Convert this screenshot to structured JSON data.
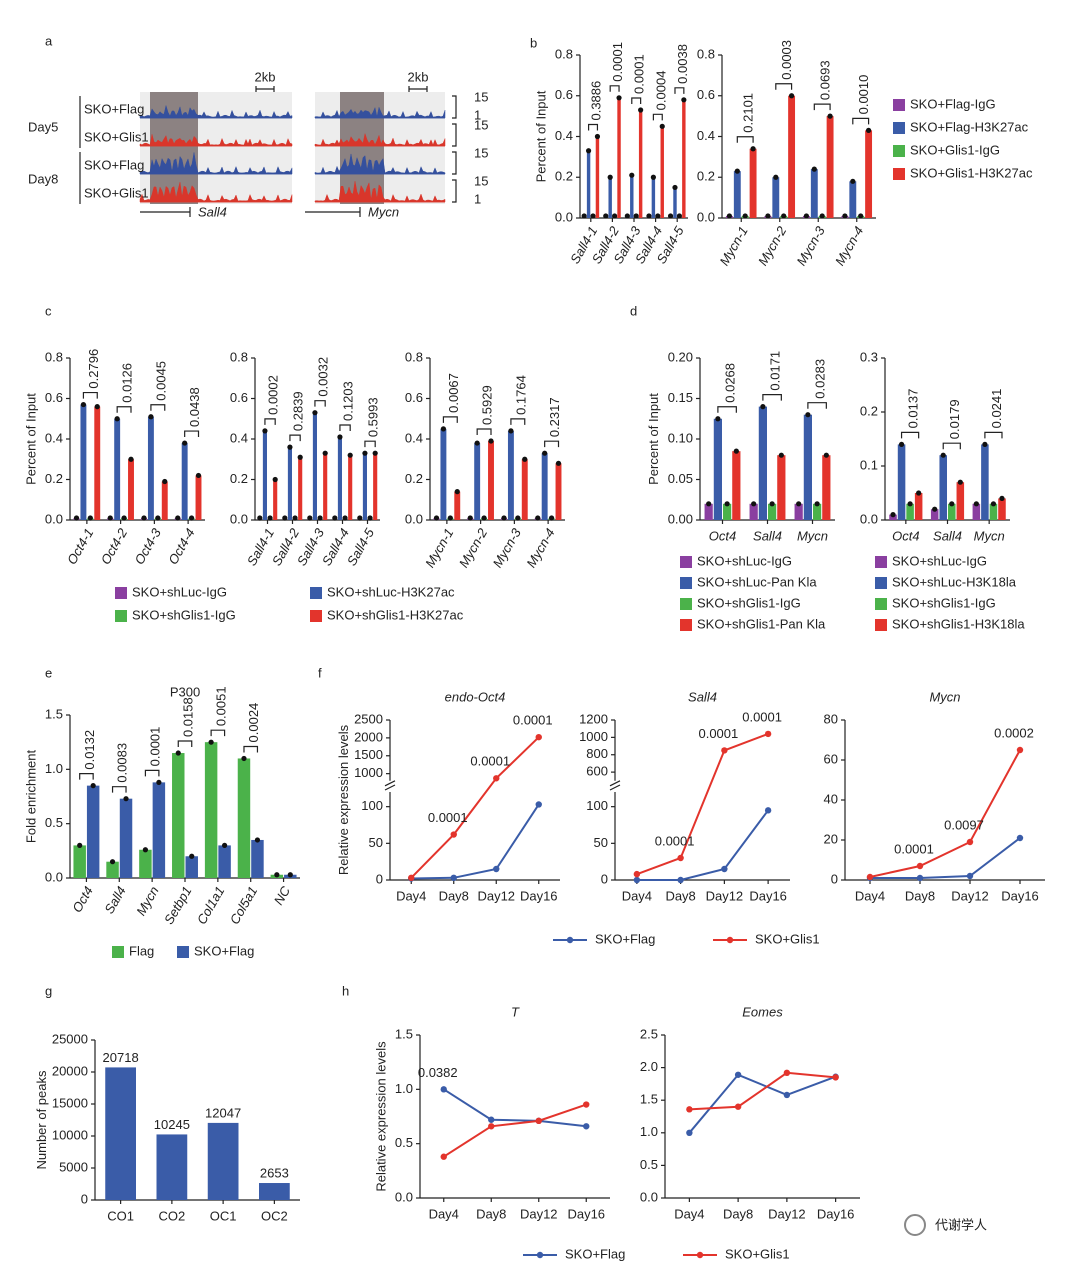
{
  "panel_a": {
    "label": "a",
    "days": [
      "Day5",
      "Day8"
    ],
    "tracks": [
      "SKO+Flag",
      "SKO+Glis1"
    ],
    "genes": [
      "Sall4",
      "Mycn"
    ],
    "scale_bar": "2kb",
    "scale": [
      "15",
      "1"
    ]
  },
  "chart_data": [
    {
      "label": "b",
      "legends": [
        [
          {
            "name": "SKO+Flag-IgG",
            "color": "#8a3fa0"
          },
          {
            "name": "SKO+Flag-H3K27ac",
            "color": "#3a5ca8"
          },
          {
            "name": "SKO+Glis1-IgG",
            "color": "#4bb24a"
          },
          {
            "name": "SKO+Glis1-H3K27ac",
            "color": "#e3342c"
          }
        ]
      ],
      "charts": [
        {
          "type": "bar",
          "ylabel": "Percent of Input",
          "categories": [
            "Sall4-1",
            "Sall4-2",
            "Sall4-3",
            "Sall4-4",
            "Sall4-5"
          ],
          "series": [
            {
              "values": [
                0.01,
                0.01,
                0.01,
                0.01,
                0.01
              ]
            },
            {
              "values": [
                0.33,
                0.2,
                0.21,
                0.2,
                0.15
              ]
            },
            {
              "values": [
                0.01,
                0.01,
                0.01,
                0.01,
                0.01
              ]
            },
            {
              "values": [
                0.4,
                0.59,
                0.53,
                0.45,
                0.58
              ]
            }
          ],
          "pvalues": [
            "0.3886",
            "0.0001",
            "0.0001",
            "0.0004",
            "0.0038"
          ],
          "ylim": [
            0,
            0.8
          ],
          "yticks": [
            {
              "value": 0,
              "label": "0.0"
            },
            0.2,
            0.4,
            0.6,
            0.8
          ]
        },
        {
          "type": "bar",
          "categories": [
            "Mycn-1",
            "Mycn-2",
            "Mycn-3",
            "Mycn-4"
          ],
          "series": [
            {
              "values": [
                0.01,
                0.01,
                0.01,
                0.01
              ]
            },
            {
              "values": [
                0.23,
                0.2,
                0.24,
                0.18
              ]
            },
            {
              "values": [
                0.01,
                0.01,
                0.01,
                0.01
              ]
            },
            {
              "values": [
                0.34,
                0.6,
                0.5,
                0.43
              ]
            }
          ],
          "pvalues": [
            "0.2101",
            "0.0003",
            "0.0693",
            "0.0010"
          ],
          "ylim": [
            0,
            0.8
          ],
          "yticks": [
            {
              "value": 0,
              "label": "0.0"
            },
            0.2,
            0.4,
            0.6,
            0.8
          ]
        }
      ]
    },
    {
      "label": "c",
      "legends": [
        [
          {
            "name": "SKO+shLuc-IgG",
            "color": "#8a3fa0"
          },
          {
            "name": "SKO+shLuc-H3K27ac",
            "color": "#3a5ca8"
          },
          {
            "name": "SKO+shGlis1-IgG",
            "color": "#4bb24a"
          },
          {
            "name": "SKO+shGlis1-H3K27ac",
            "color": "#e3342c"
          }
        ]
      ],
      "charts": [
        {
          "type": "bar",
          "ylabel": "Percent of Input",
          "categories": [
            "Oct4-1",
            "Oct4-2",
            "Oct4-3",
            "Oct4-4"
          ],
          "series": [
            {
              "values": [
                0.01,
                0.01,
                0.01,
                0.01
              ]
            },
            {
              "values": [
                0.57,
                0.5,
                0.51,
                0.38
              ]
            },
            {
              "values": [
                0.01,
                0.01,
                0.01,
                0.01
              ]
            },
            {
              "values": [
                0.56,
                0.3,
                0.19,
                0.22
              ]
            }
          ],
          "pvalues": [
            "0.2796",
            "0.0126",
            "0.0045",
            "0.0438"
          ],
          "ylim": [
            0,
            0.8
          ],
          "yticks": [
            {
              "value": 0,
              "label": "0.0"
            },
            0.2,
            0.4,
            0.6,
            0.8
          ]
        },
        {
          "type": "bar",
          "categories": [
            "Sall4-1",
            "Sall4-2",
            "Sall4-3",
            "Sall4-4",
            "Sall4-5"
          ],
          "series": [
            {
              "values": [
                0.01,
                0.01,
                0.01,
                0.01,
                0.01
              ]
            },
            {
              "values": [
                0.44,
                0.36,
                0.53,
                0.41,
                0.33
              ]
            },
            {
              "values": [
                0.01,
                0.01,
                0.01,
                0.01,
                0.01
              ]
            },
            {
              "values": [
                0.2,
                0.31,
                0.33,
                0.32,
                0.33
              ]
            }
          ],
          "pvalues": [
            "0.0002",
            "0.2839",
            "0.0032",
            "0.1203",
            "0.5993"
          ],
          "ylim": [
            0,
            0.8
          ],
          "yticks": [
            {
              "value": 0,
              "label": "0.0"
            },
            0.2,
            0.4,
            0.6,
            0.8
          ]
        },
        {
          "type": "bar",
          "categories": [
            "Mycn-1",
            "Mycn-2",
            "Mycn-3",
            "Mycn-4"
          ],
          "series": [
            {
              "values": [
                0.01,
                0.01,
                0.01,
                0.01
              ]
            },
            {
              "values": [
                0.45,
                0.38,
                0.44,
                0.33
              ]
            },
            {
              "values": [
                0.01,
                0.01,
                0.01,
                0.01
              ]
            },
            {
              "values": [
                0.14,
                0.39,
                0.3,
                0.28
              ]
            }
          ],
          "pvalues": [
            "0.0067",
            "0.5929",
            "0.1764",
            "0.2317"
          ],
          "ylim": [
            0,
            0.8
          ],
          "yticks": [
            {
              "value": 0,
              "label": "0.0"
            },
            0.2,
            0.4,
            0.6,
            0.8
          ]
        }
      ]
    },
    {
      "label": "d",
      "legends": [
        [
          {
            "name": "SKO+shLuc-IgG",
            "color": "#8a3fa0"
          },
          {
            "name": "SKO+shLuc-Pan Kla",
            "color": "#3a5ca8"
          },
          {
            "name": "SKO+shGlis1-IgG",
            "color": "#4bb24a"
          },
          {
            "name": "SKO+shGlis1-Pan Kla",
            "color": "#e3342c"
          }
        ],
        [
          {
            "name": "SKO+shLuc-IgG",
            "color": "#8a3fa0"
          },
          {
            "name": "SKO+shLuc-H3K18la",
            "color": "#3a5ca8"
          },
          {
            "name": "SKO+shGlis1-IgG",
            "color": "#4bb24a"
          },
          {
            "name": "SKO+shGlis1-H3K18la",
            "color": "#e3342c"
          }
        ]
      ],
      "charts": [
        {
          "type": "bar",
          "ylabel": "Percent of Input",
          "categories": [
            "Oct4",
            "Sall4",
            "Mycn"
          ],
          "series": [
            {
              "values": [
                0.02,
                0.02,
                0.02
              ]
            },
            {
              "values": [
                0.125,
                0.14,
                0.13
              ]
            },
            {
              "values": [
                0.02,
                0.02,
                0.02
              ]
            },
            {
              "values": [
                0.085,
                0.08,
                0.08
              ]
            }
          ],
          "pvalues": [
            "0.0268",
            "0.0171",
            "0.0283"
          ],
          "ylim": [
            0,
            0.2
          ],
          "yticks": [
            {
              "value": 0,
              "label": "0.00"
            },
            {
              "value": 0.05,
              "label": "0.05"
            },
            {
              "value": 0.1,
              "label": "0.10"
            },
            {
              "value": 0.15,
              "label": "0.15"
            },
            {
              "value": 0.2,
              "label": "0.20"
            }
          ]
        },
        {
          "type": "bar",
          "categories": [
            "Oct4",
            "Sall4",
            "Mycn"
          ],
          "series": [
            {
              "values": [
                0.01,
                0.02,
                0.03
              ]
            },
            {
              "values": [
                0.14,
                0.12,
                0.14
              ]
            },
            {
              "values": [
                0.03,
                0.03,
                0.03
              ]
            },
            {
              "values": [
                0.05,
                0.07,
                0.04
              ]
            }
          ],
          "pvalues": [
            "0.0137",
            "0.0179",
            "0.0241"
          ],
          "ylim": [
            0,
            0.3
          ],
          "yticks": [
            {
              "value": 0,
              "label": "0.0"
            },
            0.1,
            0.2,
            0.3
          ]
        }
      ]
    },
    {
      "label": "e",
      "legends": [
        [
          {
            "name": "Flag",
            "color": "#4bb24a"
          },
          {
            "name": "SKO+Flag",
            "color": "#3a5ca8"
          }
        ]
      ],
      "charts": [
        {
          "type": "bar",
          "title": "P300",
          "ylabel": "Fold enrichment",
          "categories": [
            "Oct4",
            "Sall4",
            "Mycn",
            "Setbp1",
            "Col1a1",
            "Col5a1",
            "NC"
          ],
          "series": [
            {
              "values": [
                0.3,
                0.15,
                0.26,
                1.15,
                1.25,
                1.1,
                0.03
              ]
            },
            {
              "values": [
                0.85,
                0.73,
                0.88,
                0.2,
                0.3,
                0.35,
                0.03
              ]
            }
          ],
          "pvalues": [
            "0.0132",
            "0.0083",
            "0.0001",
            "0.0158",
            "0.0051",
            "0.0024",
            null
          ],
          "ylim": [
            0,
            1.5
          ],
          "yticks": [
            {
              "value": 0,
              "label": "0.0"
            },
            0.5,
            {
              "value": 1,
              "label": "1.0"
            },
            1.5
          ]
        }
      ]
    },
    {
      "label": "f",
      "legends": [
        [
          {
            "name": "SKO+Flag",
            "color": "#3a5ca8"
          },
          {
            "name": "SKO+Glis1",
            "color": "#e3342c"
          }
        ]
      ],
      "charts": [
        {
          "type": "line",
          "title": "endo-Oct4",
          "ylabel": "Relative expression levels",
          "categories": [
            "Day4",
            "Day8",
            "Day12",
            "Day16"
          ],
          "series": [
            {
              "values": [
                2,
                3,
                15,
                103
              ]
            },
            {
              "values": [
                3,
                62,
                870,
                2020
              ]
            }
          ],
          "pvalues": [
            null,
            "0.0001",
            "0.0001",
            "0.0001"
          ],
          "ylim": [
            0,
            2500
          ],
          "ybreak": [
            120,
            800
          ],
          "yticks": [
            0,
            50,
            100,
            1000,
            1500,
            2000,
            2500
          ]
        },
        {
          "type": "line",
          "title": "Sall4",
          "categories": [
            "Day4",
            "Day8",
            "Day12",
            "Day16"
          ],
          "series": [
            {
              "values": [
                0,
                0,
                15,
                95
              ]
            },
            {
              "values": [
                8,
                30,
                850,
                1040
              ]
            }
          ],
          "pvalues": [
            null,
            "0.0001",
            "0.0001",
            "0.0001"
          ],
          "ylim": [
            0,
            1200
          ],
          "ybreak": [
            120,
            500
          ],
          "yticks": [
            0,
            50,
            100,
            600,
            800,
            1000,
            1200
          ]
        },
        {
          "type": "line",
          "title": "Mycn",
          "categories": [
            "Day4",
            "Day8",
            "Day12",
            "Day16"
          ],
          "series": [
            {
              "values": [
                1,
                1,
                2,
                21
              ]
            },
            {
              "values": [
                1.5,
                7,
                19,
                65
              ]
            }
          ],
          "pvalues": [
            null,
            "0.0001",
            "0.0097",
            "0.0002"
          ],
          "ylim": [
            0,
            80
          ],
          "yticks": [
            0,
            20,
            40,
            60,
            80
          ]
        }
      ]
    },
    {
      "label": "g",
      "charts": [
        {
          "type": "bar",
          "ylabel": "Number of peaks",
          "categories": [
            "CO1",
            "CO2",
            "OC1",
            "OC2"
          ],
          "values": [
            20718,
            10245,
            12047,
            2653
          ],
          "color": "#3a5ca8",
          "ylim": [
            0,
            25000
          ],
          "yticks": [
            0,
            5000,
            10000,
            15000,
            20000,
            25000
          ]
        }
      ]
    },
    {
      "label": "h",
      "legends": [
        [
          {
            "name": "SKO+Flag",
            "color": "#3a5ca8"
          },
          {
            "name": "SKO+Glis1",
            "color": "#e3342c"
          }
        ]
      ],
      "charts": [
        {
          "type": "line",
          "title": "T",
          "ylabel": "Relative expression levels",
          "categories": [
            "Day4",
            "Day8",
            "Day12",
            "Day16"
          ],
          "series": [
            {
              "values": [
                1.0,
                0.72,
                0.71,
                0.66
              ]
            },
            {
              "values": [
                0.38,
                0.66,
                0.71,
                0.86
              ]
            }
          ],
          "pvalues": [
            "0.0382",
            null,
            null,
            null
          ],
          "ylim": [
            0,
            1.5
          ],
          "yticks": [
            {
              "value": 0,
              "label": "0.0"
            },
            0.5,
            {
              "value": 1,
              "label": "1.0"
            },
            1.5
          ]
        },
        {
          "type": "line",
          "title": "Eomes",
          "categories": [
            "Day4",
            "Day8",
            "Day12",
            "Day16"
          ],
          "series": [
            {
              "values": [
                1.0,
                1.89,
                1.58,
                1.86
              ]
            },
            {
              "values": [
                1.36,
                1.4,
                1.92,
                1.85
              ]
            }
          ],
          "ylim": [
            0,
            2.5
          ],
          "yticks": [
            {
              "value": 0,
              "label": "0.0"
            },
            0.5,
            {
              "value": 1,
              "label": "1.0"
            },
            1.5,
            {
              "value": 2,
              "label": "2.0"
            },
            2.5
          ]
        }
      ]
    }
  ],
  "watermark": "代谢学人"
}
